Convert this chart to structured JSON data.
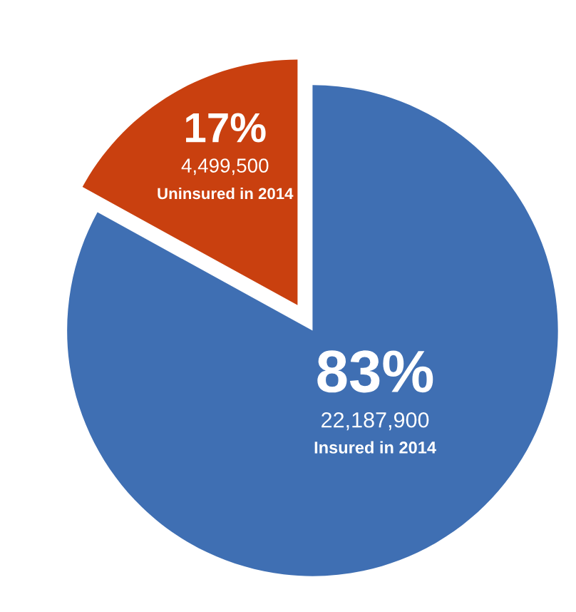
{
  "chart_data": {
    "type": "pie",
    "categories": [
      "Insured in 2014",
      "Uninsured in 2014"
    ],
    "values": [
      83,
      17
    ],
    "colors": [
      "#3f6fb3",
      "#c9400f"
    ],
    "value_labels": [
      "83%",
      "17%"
    ],
    "annotations": [
      "22,187,900",
      "4,499,500"
    ]
  }
}
